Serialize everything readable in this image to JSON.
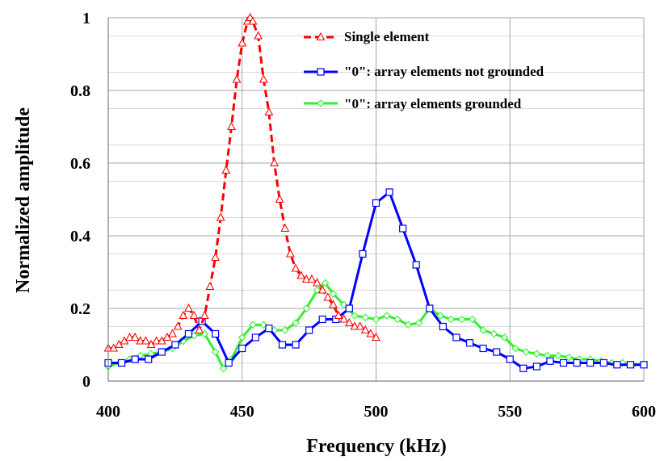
{
  "chart_data": {
    "type": "line",
    "xlabel": "Frequency (kHz)",
    "ylabel": "Normalized amplitude",
    "xlim": [
      400,
      600
    ],
    "ylim": [
      0,
      1
    ],
    "xticks": [
      400,
      450,
      500,
      550,
      600
    ],
    "xtick_labels": [
      "400",
      "450",
      "500",
      "550",
      "600"
    ],
    "yticks": [
      0,
      0.2,
      0.4,
      0.6,
      0.8,
      1
    ],
    "ytick_labels": [
      "0",
      "0.2",
      "0.4",
      "0.6",
      "0.8",
      "1"
    ],
    "grid": true,
    "legend_position": "top-right",
    "series": [
      {
        "name": "Single element",
        "color": "#ff0000",
        "dash": true,
        "marker": "triangle",
        "points": [
          [
            400,
            0.09
          ],
          [
            402,
            0.09
          ],
          [
            404,
            0.1
          ],
          [
            406,
            0.11
          ],
          [
            408,
            0.12
          ],
          [
            410,
            0.12
          ],
          [
            412,
            0.11
          ],
          [
            414,
            0.11
          ],
          [
            416,
            0.1
          ],
          [
            418,
            0.11
          ],
          [
            420,
            0.11
          ],
          [
            422,
            0.12
          ],
          [
            424,
            0.13
          ],
          [
            426,
            0.15
          ],
          [
            428,
            0.18
          ],
          [
            430,
            0.2
          ],
          [
            432,
            0.18
          ],
          [
            434,
            0.14
          ],
          [
            436,
            0.18
          ],
          [
            438,
            0.26
          ],
          [
            440,
            0.34
          ],
          [
            442,
            0.45
          ],
          [
            444,
            0.58
          ],
          [
            446,
            0.7
          ],
          [
            448,
            0.83
          ],
          [
            450,
            0.93
          ],
          [
            452,
            0.99
          ],
          [
            453,
            1.0
          ],
          [
            454,
            0.99
          ],
          [
            456,
            0.95
          ],
          [
            458,
            0.83
          ],
          [
            460,
            0.74
          ],
          [
            462,
            0.6
          ],
          [
            464,
            0.5
          ],
          [
            466,
            0.42
          ],
          [
            468,
            0.35
          ],
          [
            470,
            0.31
          ],
          [
            472,
            0.29
          ],
          [
            474,
            0.28
          ],
          [
            476,
            0.28
          ],
          [
            478,
            0.27
          ],
          [
            480,
            0.25
          ],
          [
            482,
            0.23
          ],
          [
            484,
            0.21
          ],
          [
            486,
            0.18
          ],
          [
            488,
            0.17
          ],
          [
            490,
            0.16
          ],
          [
            492,
            0.15
          ],
          [
            494,
            0.15
          ],
          [
            496,
            0.14
          ],
          [
            498,
            0.13
          ],
          [
            500,
            0.12
          ]
        ]
      },
      {
        "name": "\"0\": array elements not grounded",
        "color": "#0000ff",
        "dash": false,
        "marker": "square",
        "points": [
          [
            400,
            0.05
          ],
          [
            405,
            0.05
          ],
          [
            410,
            0.06
          ],
          [
            415,
            0.06
          ],
          [
            420,
            0.08
          ],
          [
            425,
            0.1
          ],
          [
            430,
            0.13
          ],
          [
            435,
            0.165
          ],
          [
            440,
            0.13
          ],
          [
            445,
            0.05
          ],
          [
            450,
            0.09
          ],
          [
            455,
            0.12
          ],
          [
            460,
            0.145
          ],
          [
            465,
            0.1
          ],
          [
            470,
            0.1
          ],
          [
            475,
            0.14
          ],
          [
            480,
            0.17
          ],
          [
            485,
            0.17
          ],
          [
            490,
            0.2
          ],
          [
            495,
            0.35
          ],
          [
            500,
            0.49
          ],
          [
            505,
            0.52
          ],
          [
            510,
            0.42
          ],
          [
            515,
            0.32
          ],
          [
            520,
            0.2
          ],
          [
            525,
            0.15
          ],
          [
            530,
            0.12
          ],
          [
            535,
            0.105
          ],
          [
            540,
            0.09
          ],
          [
            545,
            0.08
          ],
          [
            550,
            0.06
          ],
          [
            555,
            0.035
          ],
          [
            560,
            0.04
          ],
          [
            565,
            0.055
          ],
          [
            570,
            0.05
          ],
          [
            575,
            0.05
          ],
          [
            580,
            0.05
          ],
          [
            585,
            0.05
          ],
          [
            590,
            0.045
          ],
          [
            595,
            0.045
          ],
          [
            600,
            0.045
          ]
        ]
      },
      {
        "name": "\"0\": array elements grounded",
        "color": "#33ee33",
        "dash": false,
        "marker": "diamond",
        "points": [
          [
            400,
            0.04
          ],
          [
            404,
            0.05
          ],
          [
            408,
            0.06
          ],
          [
            412,
            0.07
          ],
          [
            416,
            0.075
          ],
          [
            420,
            0.08
          ],
          [
            424,
            0.09
          ],
          [
            428,
            0.11
          ],
          [
            432,
            0.125
          ],
          [
            436,
            0.13
          ],
          [
            440,
            0.08
          ],
          [
            443,
            0.035
          ],
          [
            446,
            0.06
          ],
          [
            450,
            0.12
          ],
          [
            454,
            0.155
          ],
          [
            458,
            0.155
          ],
          [
            462,
            0.14
          ],
          [
            466,
            0.14
          ],
          [
            470,
            0.16
          ],
          [
            474,
            0.2
          ],
          [
            478,
            0.25
          ],
          [
            481,
            0.27
          ],
          [
            484,
            0.24
          ],
          [
            488,
            0.21
          ],
          [
            492,
            0.18
          ],
          [
            496,
            0.175
          ],
          [
            500,
            0.17
          ],
          [
            504,
            0.18
          ],
          [
            508,
            0.17
          ],
          [
            512,
            0.155
          ],
          [
            516,
            0.16
          ],
          [
            520,
            0.2
          ],
          [
            524,
            0.18
          ],
          [
            528,
            0.17
          ],
          [
            532,
            0.17
          ],
          [
            536,
            0.17
          ],
          [
            540,
            0.14
          ],
          [
            544,
            0.13
          ],
          [
            548,
            0.12
          ],
          [
            552,
            0.09
          ],
          [
            556,
            0.08
          ],
          [
            560,
            0.075
          ],
          [
            564,
            0.07
          ],
          [
            568,
            0.07
          ],
          [
            572,
            0.065
          ],
          [
            576,
            0.06
          ],
          [
            580,
            0.06
          ],
          [
            584,
            0.055
          ],
          [
            588,
            0.05
          ],
          [
            592,
            0.05
          ],
          [
            596,
            0.045
          ],
          [
            600,
            0.045
          ]
        ]
      }
    ]
  }
}
